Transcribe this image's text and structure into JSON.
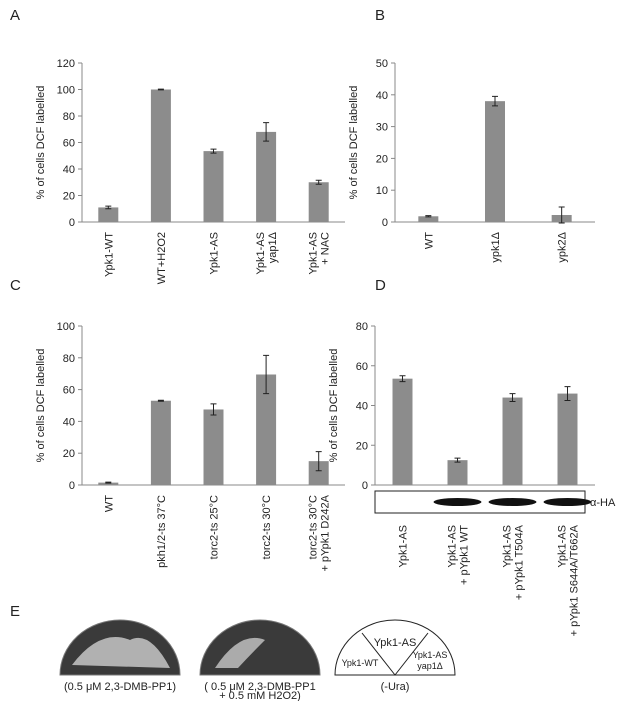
{
  "chart_data": [
    {
      "type": "bar",
      "label": "A",
      "y_label": "% of cells DCF labelled",
      "categories": [
        [
          "Ypk1-WT"
        ],
        [
          "WT+H2O2"
        ],
        [
          "Ypk1-AS"
        ],
        [
          "Ypk1-AS",
          "yap1Δ"
        ],
        [
          "Ypk1-AS",
          "+ NAC"
        ]
      ],
      "values": [
        11,
        100,
        53.5,
        68,
        30
      ],
      "errors": [
        1,
        0.3,
        1.5,
        7,
        1.5
      ],
      "color": "#8c8c8c",
      "ylim": [
        0,
        120
      ],
      "yticks": [
        0,
        20,
        40,
        60,
        80,
        100,
        120
      ]
    },
    {
      "type": "bar",
      "label": "B",
      "y_label": "% of cells DCF labelled",
      "categories": [
        [
          "WT"
        ],
        [
          "ypk1Δ"
        ],
        [
          "ypk2Δ"
        ]
      ],
      "values": [
        1.8,
        38,
        2.2
      ],
      "errors": [
        0.2,
        1.5,
        2.5
      ],
      "color": "#8c8c8c",
      "ylim": [
        0,
        50
      ],
      "yticks": [
        0,
        10,
        20,
        30,
        40,
        50
      ]
    },
    {
      "type": "bar",
      "label": "C",
      "y_label": "% of cells DCF labelled",
      "categories": [
        [
          "WT"
        ],
        [
          "pkh1/2-ts 37°C"
        ],
        [
          "torc2-ts 25°C"
        ],
        [
          "torc2-ts 30°C"
        ],
        [
          "torc2-ts 30°C",
          "+ pYpk1 D242A"
        ]
      ],
      "values": [
        1.5,
        53,
        47.5,
        69.5,
        15
      ],
      "errors": [
        0.3,
        0.3,
        3.5,
        12,
        6
      ],
      "color": "#8c8c8c",
      "ylim": [
        0,
        100
      ],
      "yticks": [
        0,
        20,
        40,
        60,
        80,
        100
      ]
    },
    {
      "type": "bar",
      "label": "D",
      "y_label": "% of cells DCF labelled",
      "annotation": "α-HA",
      "categories": [
        [
          "Ypk1-AS"
        ],
        [
          "Ypk1-AS",
          "+ pYpk1 WT"
        ],
        [
          "Ypk1-AS",
          "+ pYpk1 T504A"
        ],
        [
          "Ypk1-AS",
          "+ pYpk1 S644A/T662A"
        ]
      ],
      "values": [
        53.5,
        12.5,
        44,
        46
      ],
      "errors": [
        1.5,
        1,
        2,
        3.5
      ],
      "color": "#8c8c8c",
      "ylim": [
        0,
        80
      ],
      "yticks": [
        0,
        20,
        40,
        60,
        80
      ]
    }
  ],
  "panel_e": {
    "label": "E",
    "plate1_caption": [
      "(0.5 μM 2,3-DMB-PP1)"
    ],
    "plate2_caption": [
      "( 0.5 μM 2,3-DMB-PP1",
      "+ 0.5 mM H2O2)"
    ],
    "diagram_sections": [
      [
        "Ypk1-AS"
      ],
      [
        "Ypk1-WT"
      ],
      [
        "Ypk1-AS",
        "yap1Δ"
      ]
    ],
    "diagram_caption": "(-Ura)"
  }
}
